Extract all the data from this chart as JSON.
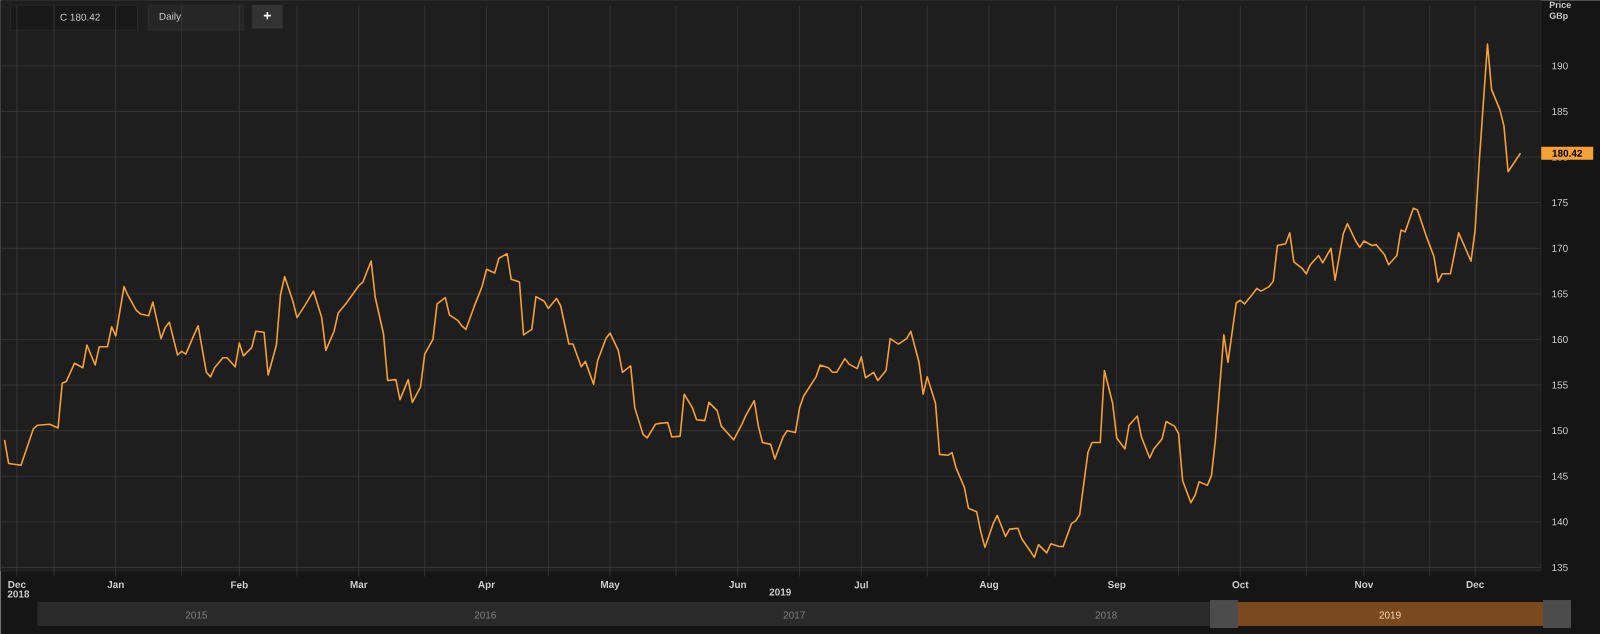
{
  "chart_data": {
    "type": "line",
    "x": [
      "2018-12-20",
      "2018-12-21",
      "2018-12-24",
      "2018-12-27",
      "2018-12-28",
      "2018-12-31",
      "2019-01-02",
      "2019-01-03",
      "2019-01-04",
      "2019-01-06",
      "2019-01-08",
      "2019-01-09",
      "2019-01-11",
      "2019-01-12",
      "2019-01-14",
      "2019-01-15",
      "2019-01-16",
      "2019-01-18",
      "2019-01-19",
      "2019-01-21",
      "2019-01-22",
      "2019-01-24",
      "2019-01-25",
      "2019-01-27",
      "2019-01-28",
      "2019-01-29",
      "2019-01-31",
      "2019-02-01",
      "2019-02-02",
      "2019-02-04",
      "2019-02-05",
      "2019-02-07",
      "2019-02-08",
      "2019-02-09",
      "2019-02-11",
      "2019-02-12",
      "2019-02-14",
      "2019-02-15",
      "2019-02-16",
      "2019-02-18",
      "2019-02-19",
      "2019-02-21",
      "2019-02-22",
      "2019-02-24",
      "2019-02-25",
      "2019-02-26",
      "2019-02-28",
      "2019-03-01",
      "2019-03-03",
      "2019-03-05",
      "2019-03-07",
      "2019-03-08",
      "2019-03-10",
      "2019-03-11",
      "2019-03-13",
      "2019-03-16",
      "2019-03-17",
      "2019-03-19",
      "2019-03-20",
      "2019-03-22",
      "2019-03-23",
      "2019-03-25",
      "2019-03-26",
      "2019-03-28",
      "2019-03-29",
      "2019-03-31",
      "2019-04-01",
      "2019-04-03",
      "2019-04-04",
      "2019-04-06",
      "2019-04-07",
      "2019-04-09",
      "2019-04-10",
      "2019-04-11",
      "2019-04-13",
      "2019-04-15",
      "2019-04-16",
      "2019-04-18",
      "2019-04-19",
      "2019-04-21",
      "2019-04-22",
      "2019-04-24",
      "2019-04-25",
      "2019-04-27",
      "2019-04-28",
      "2019-04-30",
      "2019-05-01",
      "2019-05-03",
      "2019-05-04",
      "2019-05-06",
      "2019-05-07",
      "2019-05-09",
      "2019-05-10",
      "2019-05-12",
      "2019-05-13",
      "2019-05-15",
      "2019-05-16",
      "2019-05-18",
      "2019-05-19",
      "2019-05-21",
      "2019-05-22",
      "2019-05-24",
      "2019-05-25",
      "2019-05-27",
      "2019-05-28",
      "2019-05-30",
      "2019-05-31",
      "2019-06-02",
      "2019-06-03",
      "2019-06-05",
      "2019-06-06",
      "2019-06-08",
      "2019-06-09",
      "2019-06-11",
      "2019-06-12",
      "2019-06-14",
      "2019-06-15",
      "2019-06-17",
      "2019-06-18",
      "2019-06-20",
      "2019-06-21",
      "2019-06-22",
      "2019-06-24",
      "2019-06-25",
      "2019-06-27",
      "2019-06-28",
      "2019-06-30",
      "2019-07-01",
      "2019-07-02",
      "2019-07-05",
      "2019-07-06",
      "2019-07-08",
      "2019-07-09",
      "2019-07-10",
      "2019-07-12",
      "2019-07-13",
      "2019-07-15",
      "2019-07-16",
      "2019-07-17",
      "2019-07-19",
      "2019-07-20",
      "2019-07-22",
      "2019-07-23",
      "2019-07-24",
      "2019-07-25",
      "2019-07-27",
      "2019-07-28",
      "2019-07-30",
      "2019-07-31",
      "2019-08-01",
      "2019-08-03",
      "2019-08-04",
      "2019-08-06",
      "2019-08-07",
      "2019-08-08",
      "2019-08-10",
      "2019-08-11",
      "2019-08-13",
      "2019-08-14",
      "2019-08-15",
      "2019-08-17",
      "2019-08-18",
      "2019-08-20",
      "2019-08-21",
      "2019-08-23",
      "2019-08-24",
      "2019-08-26",
      "2019-08-27",
      "2019-08-28",
      "2019-08-30",
      "2019-08-31",
      "2019-09-02",
      "2019-09-03",
      "2019-09-05",
      "2019-09-06",
      "2019-09-07",
      "2019-09-09",
      "2019-09-10",
      "2019-09-12",
      "2019-09-13",
      "2019-09-15",
      "2019-09-16",
      "2019-09-18",
      "2019-09-19",
      "2019-09-21",
      "2019-09-22",
      "2019-09-24",
      "2019-09-25",
      "2019-09-27",
      "2019-09-28",
      "2019-09-30",
      "2019-10-01",
      "2019-10-02",
      "2019-10-04",
      "2019-10-05",
      "2019-10-06",
      "2019-10-08",
      "2019-10-09",
      "2019-10-10",
      "2019-10-12",
      "2019-10-13",
      "2019-10-15",
      "2019-10-16",
      "2019-10-17",
      "2019-10-19",
      "2019-10-20",
      "2019-10-21",
      "2019-10-23",
      "2019-10-24",
      "2019-10-25",
      "2019-10-27",
      "2019-10-28",
      "2019-10-29",
      "2019-10-31",
      "2019-11-01",
      "2019-11-02",
      "2019-11-04",
      "2019-11-05",
      "2019-11-07",
      "2019-11-08",
      "2019-11-10",
      "2019-11-11",
      "2019-11-13",
      "2019-11-14",
      "2019-11-15",
      "2019-11-17",
      "2019-11-18",
      "2019-11-20",
      "2019-11-21",
      "2019-11-23",
      "2019-11-24",
      "2019-11-25",
      "2019-11-27",
      "2019-11-28",
      "2019-11-30",
      "2019-12-02",
      "2019-12-03",
      "2019-12-04",
      "2019-12-06",
      "2019-12-08",
      "2019-12-11",
      "2019-12-12",
      "2019-12-13",
      "2019-12-15",
      "2019-12-16",
      "2019-12-18",
      "2019-12-19",
      "2019-12-20",
      "2019-12-23"
    ],
    "series": [
      {
        "color": "#f7a035",
        "values": [
          149.0,
          146.4,
          146.2,
          150.2,
          150.6,
          150.7,
          150.3,
          155.2,
          155.4,
          157.4,
          156.9,
          159.4,
          157.2,
          159.2,
          159.2,
          161.4,
          160.4,
          165.8,
          164.8,
          163.2,
          162.8,
          162.6,
          164.1,
          160.1,
          161.3,
          161.9,
          158.3,
          158.7,
          158.4,
          160.5,
          161.5,
          156.4,
          155.9,
          156.9,
          158.0,
          158.0,
          157.0,
          159.6,
          158.2,
          159.1,
          160.9,
          160.8,
          156.1,
          159.4,
          164.9,
          166.9,
          164.2,
          162.4,
          163.8,
          165.3,
          162.4,
          158.8,
          160.9,
          162.9,
          164.0,
          165.9,
          166.3,
          168.6,
          164.6,
          160.6,
          155.5,
          155.6,
          153.4,
          155.6,
          153.1,
          154.8,
          158.4,
          160.0,
          163.9,
          164.6,
          162.7,
          162.1,
          161.5,
          161.1,
          163.6,
          165.9,
          167.7,
          167.3,
          168.9,
          169.4,
          166.6,
          166.3,
          160.5,
          161.1,
          164.7,
          164.2,
          163.4,
          164.5,
          163.7,
          159.5,
          159.5,
          157.0,
          157.6,
          155.1,
          157.7,
          160.1,
          160.7,
          158.8,
          156.4,
          157.1,
          152.5,
          149.6,
          149.2,
          150.7,
          150.8,
          150.9,
          149.3,
          149.4,
          154.0,
          152.5,
          151.2,
          151.1,
          153.1,
          152.2,
          150.5,
          149.5,
          149.0,
          150.7,
          151.7,
          153.3,
          150.5,
          148.7,
          148.5,
          146.9,
          149.3,
          150.0,
          149.8,
          152.5,
          153.8,
          155.9,
          157.2,
          156.9,
          156.4,
          156.4,
          157.9,
          157.3,
          156.8,
          158.1,
          155.8,
          156.4,
          155.5,
          156.6,
          160.1,
          159.8,
          159.5,
          160.1,
          160.9,
          157.5,
          154.0,
          155.9,
          153.0,
          147.4,
          147.3,
          147.6,
          145.9,
          143.8,
          141.5,
          141.1,
          138.9,
          137.2,
          139.8,
          140.7,
          138.4,
          139.2,
          139.3,
          138.1,
          136.8,
          136.1,
          137.5,
          136.6,
          137.6,
          137.3,
          137.3,
          139.8,
          140.1,
          140.8,
          147.6,
          148.7,
          148.7,
          156.6,
          153.0,
          149.2,
          148.0,
          150.6,
          151.6,
          149.3,
          147.0,
          148.0,
          149.1,
          151.0,
          150.5,
          149.7,
          144.5,
          142.1,
          142.9,
          144.4,
          144.0,
          145.1,
          149.2,
          160.5,
          157.5,
          164.0,
          164.3,
          163.9,
          165.0,
          165.6,
          165.3,
          165.8,
          166.4,
          170.3,
          170.5,
          171.7,
          168.5,
          167.8,
          167.2,
          168.2,
          169.2,
          168.4,
          170.0,
          166.5,
          171.6,
          172.7,
          170.8,
          170.1,
          170.8,
          170.3,
          170.4,
          169.3,
          168.2,
          169.2,
          172.0,
          171.8,
          174.4,
          174.2,
          171.5,
          169.1,
          166.3,
          167.2,
          167.2,
          171.7,
          168.6,
          172.0,
          179.5,
          192.4,
          187.4,
          185.2,
          183.4,
          178.4,
          180.42
        ]
      }
    ],
    "xlim": [
      "2018-12-19",
      "2019-12-28"
    ],
    "ylim": [
      134,
      196.6
    ],
    "xticks": [
      {
        "value": "2018-12-23",
        "label": "Dec"
      },
      {
        "value": "2019-01-01",
        "label": null
      },
      {
        "value": "2019-01-16",
        "label": "Jan"
      },
      {
        "value": "2019-02-01",
        "label": null
      },
      {
        "value": "2019-02-15",
        "label": "Feb"
      },
      {
        "value": "2019-03-01",
        "label": null
      },
      {
        "value": "2019-03-16",
        "label": "Mar"
      },
      {
        "value": "2019-04-01",
        "label": null
      },
      {
        "value": "2019-04-16",
        "label": "Apr"
      },
      {
        "value": "2019-05-01",
        "label": null
      },
      {
        "value": "2019-05-16",
        "label": "May"
      },
      {
        "value": "2019-06-01",
        "label": null
      },
      {
        "value": "2019-06-16",
        "label": "Jun"
      },
      {
        "value": "2019-07-01",
        "label": null
      },
      {
        "value": "2019-07-16",
        "label": "Jul"
      },
      {
        "value": "2019-08-01",
        "label": null
      },
      {
        "value": "2019-08-16",
        "label": "Aug"
      },
      {
        "value": "2019-09-01",
        "label": null
      },
      {
        "value": "2019-09-16",
        "label": "Sep"
      },
      {
        "value": "2019-10-01",
        "label": null
      },
      {
        "value": "2019-10-16",
        "label": "Oct"
      },
      {
        "value": "2019-11-01",
        "label": null
      },
      {
        "value": "2019-11-15",
        "label": "Nov"
      },
      {
        "value": "2019-12-01",
        "label": null
      },
      {
        "value": "2019-12-12",
        "label": "Dec"
      }
    ],
    "yticks": [
      135,
      140,
      145,
      150,
      155,
      160,
      165,
      170,
      175,
      180,
      185,
      190
    ],
    "ylabel": "Price GBp",
    "grid": true,
    "annotations": [
      "C 180.42",
      "Daily",
      "+",
      "180.42",
      "2018",
      "2019",
      "2015",
      "2016",
      "2017",
      "2018",
      "2019"
    ]
  }
}
